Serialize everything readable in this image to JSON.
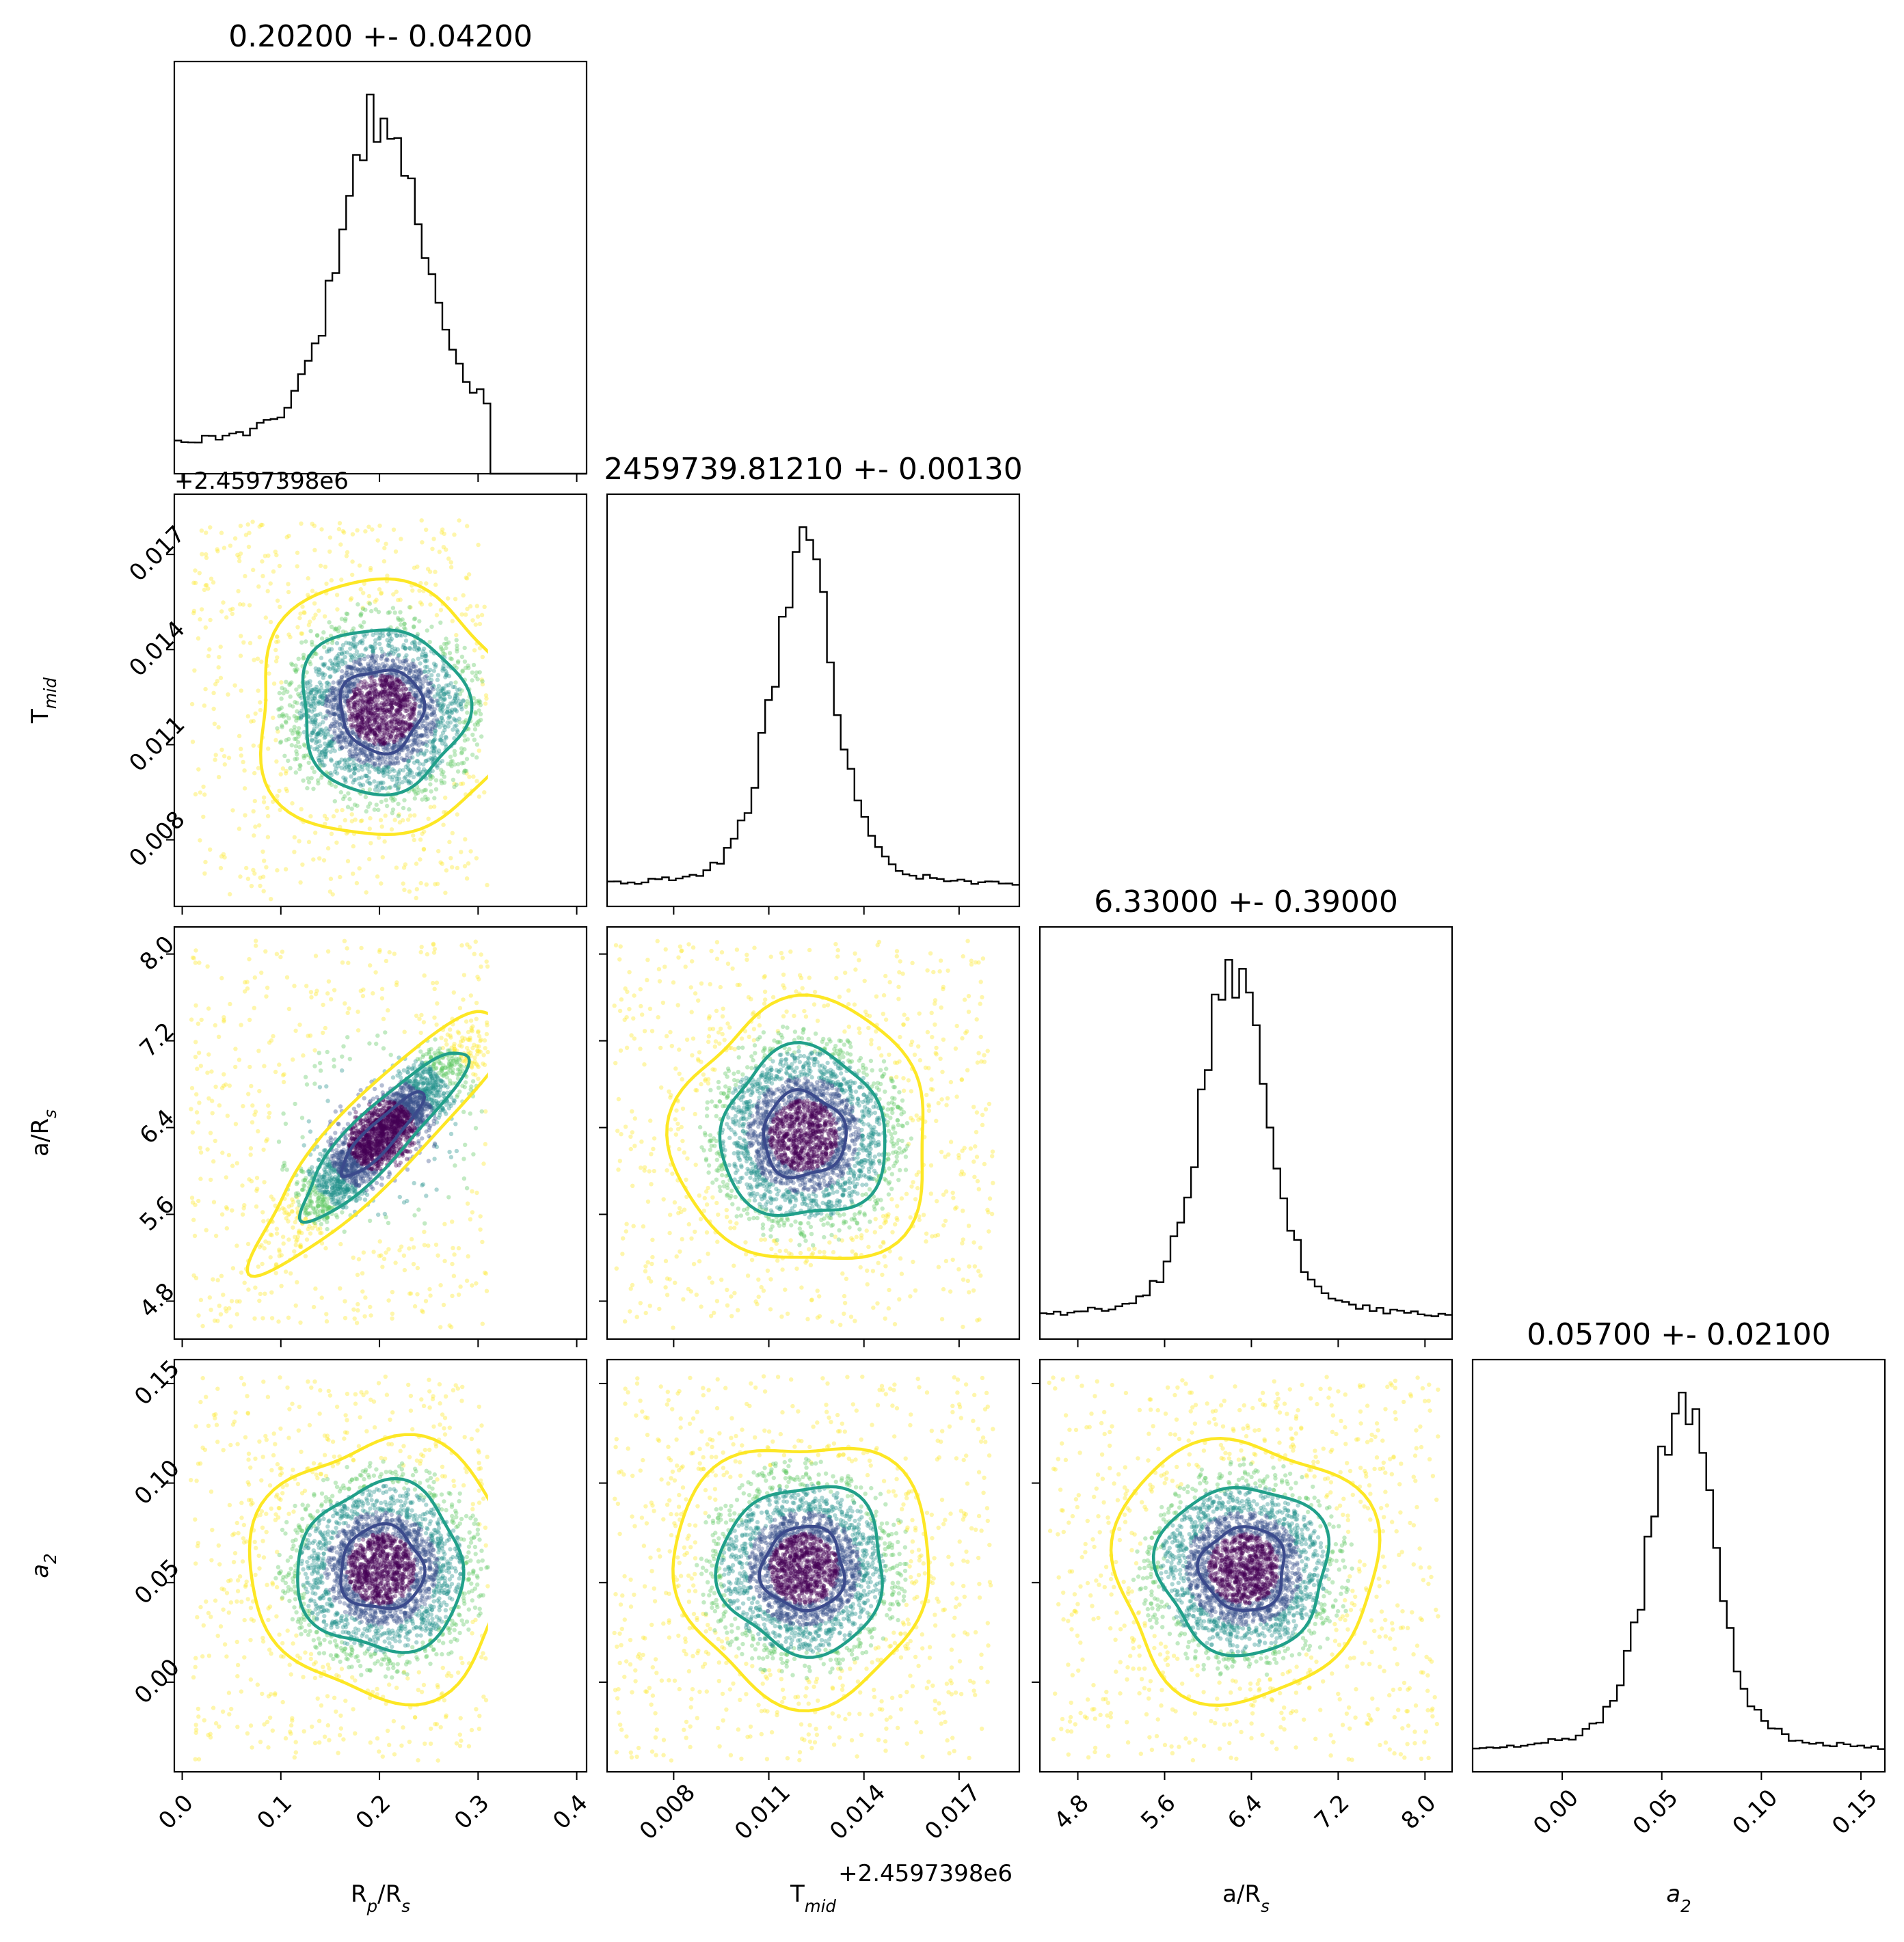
{
  "chart_data": {
    "type": "corner",
    "colors": {
      "histogram": "#000000",
      "points": [
        "#440154",
        "#3b528b",
        "#21918c",
        "#5ec962",
        "#fde725"
      ],
      "contour_inner": "#3b4a8c",
      "contour_middle": "#21a08a",
      "contour_outer": "#fde725"
    },
    "parameters": [
      {
        "key": "rprs",
        "xlabel": "R_p/R_s",
        "ylabel": "",
        "title": "0.20200 +- 0.04200",
        "median": 0.202,
        "sigma": 0.042,
        "range": [
          -0.008,
          0.41
        ],
        "ticks": [
          0.0,
          0.1,
          0.2,
          0.3,
          0.4
        ],
        "tick_labels": [
          "0.0",
          "0.1",
          "0.2",
          "0.3",
          "0.4"
        ],
        "offset_text": ""
      },
      {
        "key": "tmid",
        "xlabel": "T_mid",
        "ylabel": "T_mid",
        "title": "2459739.81210 +- 0.00130",
        "median": 0.0121,
        "sigma": 0.0013,
        "range": [
          0.0059,
          0.0189
        ],
        "ticks": [
          0.008,
          0.011,
          0.014,
          0.017
        ],
        "tick_labels": [
          "0.008",
          "0.011",
          "0.014",
          "0.017"
        ],
        "offset_text": "+2.4597398e6"
      },
      {
        "key": "ars",
        "xlabel": "a/R_s",
        "ylabel": "a/R_s",
        "title": "6.33000 +- 0.39000",
        "median": 6.33,
        "sigma": 0.39,
        "range": [
          4.45,
          8.25
        ],
        "ticks": [
          4.8,
          5.6,
          6.4,
          7.2,
          8.0
        ],
        "tick_labels": [
          "4.8",
          "5.6",
          "6.4",
          "7.2",
          "8.0"
        ],
        "offset_text": ""
      },
      {
        "key": "a2",
        "xlabel": "a_2",
        "ylabel": "a_2",
        "title": "0.05700 +- 0.02100",
        "median": 0.057,
        "sigma": 0.021,
        "range": [
          -0.045,
          0.162
        ],
        "ticks": [
          0.0,
          0.05,
          0.1,
          0.15
        ],
        "tick_labels": [
          "0.00",
          "0.05",
          "0.10",
          "0.15"
        ],
        "offset_text": ""
      }
    ],
    "histograms": [
      {
        "param": "rprs",
        "bins": 60,
        "range": [
          -0.008,
          0.41
        ],
        "peak": 0.202,
        "shape": "asymmetric peak near 0.20, broad left wing, sharp cutoff at 0.31"
      },
      {
        "param": "tmid",
        "bins": 60,
        "range": [
          0.0059,
          0.0189
        ],
        "peak": 0.0121,
        "shape": "narrow peak near 0.0121 with flat wings"
      },
      {
        "param": "ars",
        "bins": 60,
        "range": [
          4.45,
          8.25
        ],
        "peak": 6.25,
        "shape": "peak near 6.25 with tail to 7.6 and flat wings"
      },
      {
        "param": "a2",
        "bins": 60,
        "range": [
          -0.045,
          0.162
        ],
        "peak": 0.06,
        "shape": "sharp peak near 0.06 with flat wings"
      }
    ],
    "pairs": [
      {
        "x": "rprs",
        "y": "tmid",
        "correlation": 0.0
      },
      {
        "x": "rprs",
        "y": "ars",
        "correlation": 0.9
      },
      {
        "x": "tmid",
        "y": "ars",
        "correlation": 0.0
      },
      {
        "x": "rprs",
        "y": "a2",
        "correlation": 0.0
      },
      {
        "x": "tmid",
        "y": "a2",
        "correlation": 0.0
      },
      {
        "x": "ars",
        "y": "a2",
        "correlation": 0.0
      }
    ],
    "rprs_cutoff": 0.31
  }
}
